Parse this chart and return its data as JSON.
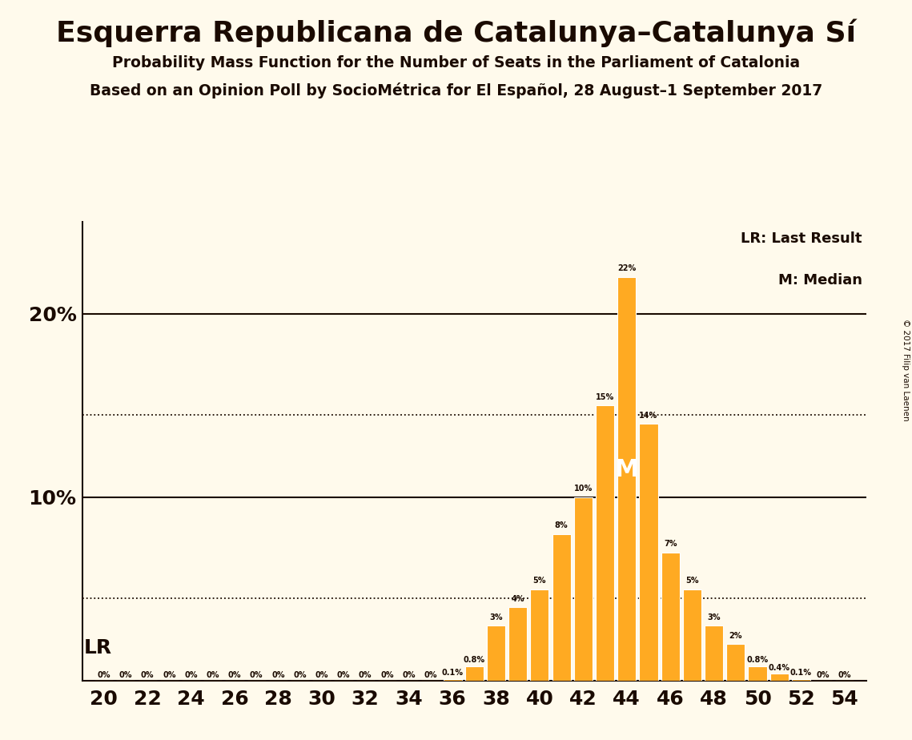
{
  "title": "Esquerra Republicana de Catalunya–Catalunya Sí",
  "subtitle1": "Probability Mass Function for the Number of Seats in the Parliament of Catalonia",
  "subtitle2": "Based on an Opinion Poll by SocioMétrica for El Español, 28 August–1 September 2017",
  "copyright": "© 2017 Filip van Laenen",
  "seats": [
    20,
    21,
    22,
    23,
    24,
    25,
    26,
    27,
    28,
    29,
    30,
    31,
    32,
    33,
    34,
    35,
    36,
    37,
    38,
    39,
    40,
    41,
    42,
    43,
    44,
    45,
    46,
    47,
    48,
    49,
    50,
    51,
    52,
    53,
    54
  ],
  "probabilities": [
    0.0,
    0.0,
    0.0,
    0.0,
    0.0,
    0.0,
    0.0,
    0.0,
    0.0,
    0.0,
    0.0,
    0.0,
    0.0,
    0.0,
    0.0,
    0.0,
    0.1,
    0.8,
    3.0,
    4.0,
    5.0,
    8.0,
    10.0,
    15.0,
    22.0,
    14.0,
    7.0,
    5.0,
    3.0,
    2.0,
    0.8,
    0.4,
    0.1,
    0.0,
    0.0
  ],
  "bar_color": "#FFAA22",
  "background_color": "#FFFAEC",
  "text_color": "#1a0a00",
  "lr_seat": 20,
  "median_seat": 44,
  "median_prob": 22.0,
  "dotted_lines": [
    4.5,
    14.5
  ],
  "solid_lines": [
    10.0,
    20.0
  ],
  "solid_line_labels": [
    "10%",
    "20%"
  ],
  "xlabel_seats": [
    20,
    22,
    24,
    26,
    28,
    30,
    32,
    34,
    36,
    38,
    40,
    42,
    44,
    46,
    48,
    50,
    52,
    54
  ],
  "ylim": [
    0,
    25
  ],
  "xlim_left": 19.0,
  "xlim_right": 55.0
}
